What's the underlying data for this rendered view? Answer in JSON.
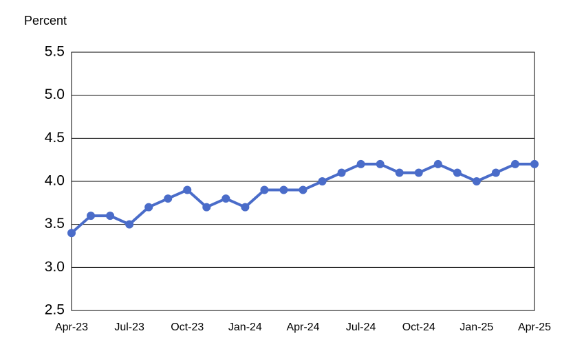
{
  "chart_data": {
    "type": "line",
    "y_label": "Percent",
    "categories": [
      "Apr-23",
      null,
      null,
      "Jul-23",
      null,
      null,
      "Oct-23",
      null,
      null,
      "Jan-24",
      null,
      null,
      "Apr-24",
      null,
      null,
      "Jul-24",
      null,
      null,
      "Oct-24",
      null,
      null,
      "Jan-25",
      null,
      null,
      "Apr-25"
    ],
    "values": [
      3.4,
      3.6,
      3.6,
      3.5,
      3.7,
      3.8,
      3.9,
      3.7,
      3.8,
      3.7,
      3.9,
      3.9,
      3.9,
      4.0,
      4.1,
      4.2,
      4.2,
      4.1,
      4.1,
      4.2,
      4.1,
      4.0,
      4.1,
      4.2,
      4.2
    ],
    "color": "#4a6cc9",
    "ylim": [
      2.5,
      5.5
    ],
    "yticks": [
      2.5,
      {
        "value": 3,
        "label": "3.0"
      },
      3.5,
      {
        "value": 4,
        "label": "4.0"
      },
      4.5,
      {
        "value": 5,
        "label": "5.0"
      },
      5.5
    ],
    "grid": true
  }
}
